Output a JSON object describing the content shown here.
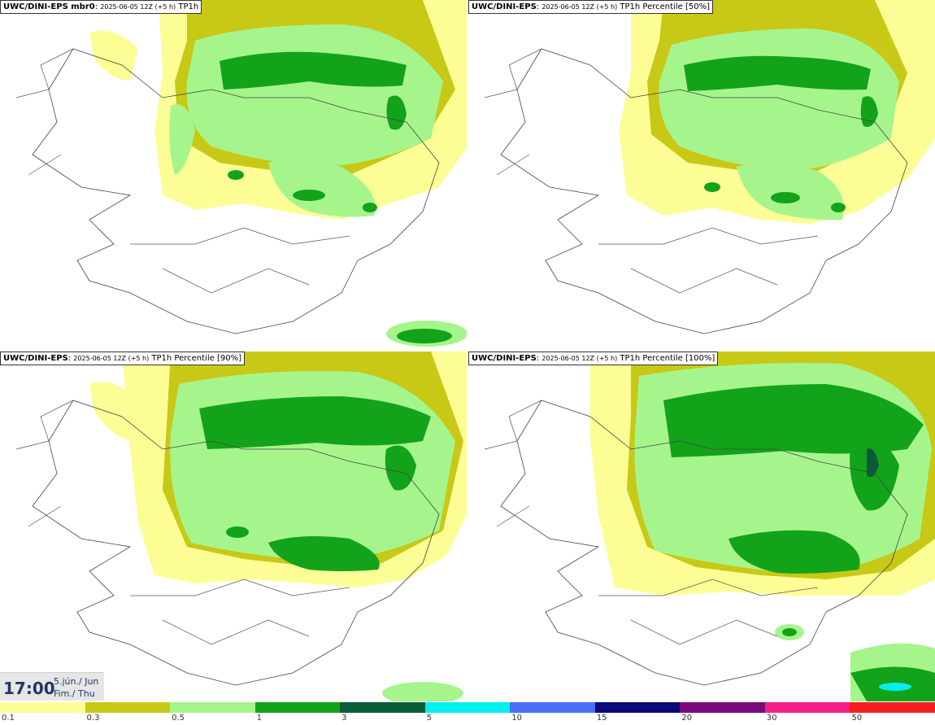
{
  "panels": [
    {
      "model": "UWC/DINI-EPS mbr0",
      "run": "2025-06-05 12Z (+5 h)",
      "field": "TP1h"
    },
    {
      "model": "UWC/DINI-EPS",
      "run": "2025-06-05 12Z (+5 h)",
      "field": "TP1h Percentile [50%]"
    },
    {
      "model": "UWC/DINI-EPS",
      "run": "2025-06-05 12Z (+5 h)",
      "field": "TP1h Percentile [90%]"
    },
    {
      "model": "UWC/DINI-EPS",
      "run": "2025-06-05 12Z (+5 h)",
      "field": "TP1h Percentile [100%]"
    }
  ],
  "time": {
    "clock": "17:00",
    "date_line1": "5.jún./ Jun",
    "date_line2": "Fim./ Thu"
  },
  "legend": {
    "colors": [
      "#fdfd96",
      "#c8c817",
      "#a6f58c",
      "#12a31a",
      "#0a5c38",
      "#00f0f0",
      "#4b6ef5",
      "#0a0a78",
      "#7a0a7a",
      "#f51e8c",
      "#f51e1e"
    ],
    "ticks": [
      "0.1",
      "0.3",
      "0.5",
      "1",
      "3",
      "5",
      "10",
      "15",
      "20",
      "30",
      "50"
    ]
  }
}
